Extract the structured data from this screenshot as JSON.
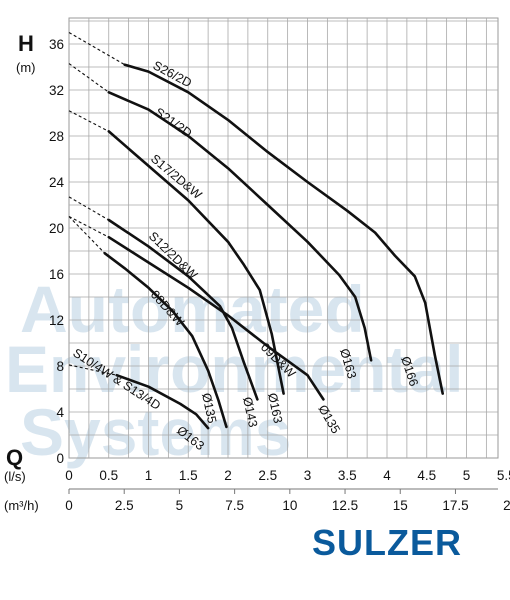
{
  "logo_text": "SULZER",
  "watermark_lines": [
    "Automated",
    "Environmental",
    "Systems"
  ],
  "chart_data": {
    "type": "line",
    "title": "",
    "y_axis": {
      "name": "H",
      "unit": "(m)",
      "range": [
        0,
        38
      ],
      "ticks": [
        0,
        4,
        8,
        12,
        16,
        20,
        24,
        28,
        32,
        36
      ]
    },
    "x_axis": {
      "name": "Q",
      "unit": "(l/s)",
      "range": [
        0,
        5.8
      ],
      "ticks": [
        "0",
        "0.5",
        "1",
        "1.5",
        "2",
        "2.5",
        "3",
        "3.5",
        "4",
        "4.5",
        "5",
        "5.5"
      ],
      "tick_values": [
        0,
        0.5,
        1,
        1.5,
        2,
        2.5,
        3,
        3.5,
        4,
        4.5,
        5,
        5.5
      ]
    },
    "x_axis_secondary": {
      "unit": "(m³/h)",
      "ticks": [
        "0",
        "2.5",
        "5",
        "7.5",
        "10",
        "12.5",
        "15",
        "17.5",
        "20"
      ],
      "tick_values": [
        0,
        2.5,
        5,
        7.5,
        10,
        12.5,
        15,
        17.5,
        20
      ]
    },
    "grid": true,
    "line_color": "#111111",
    "series": [
      {
        "name": "S26/2D",
        "diameter": "Ø166",
        "dashed": [
          [
            0,
            37.0
          ],
          [
            0.7,
            34.2
          ]
        ],
        "values": [
          [
            0.7,
            34.2
          ],
          [
            1.0,
            33.6
          ],
          [
            1.5,
            31.8
          ],
          [
            2.0,
            29.4
          ],
          [
            2.5,
            26.6
          ],
          [
            3.0,
            24.0
          ],
          [
            3.5,
            21.5
          ],
          [
            3.85,
            19.6
          ],
          [
            4.1,
            17.6
          ],
          [
            4.35,
            15.8
          ],
          [
            4.48,
            13.5
          ],
          [
            4.6,
            9.0
          ],
          [
            4.7,
            5.6
          ]
        ]
      },
      {
        "name": "S21/2D",
        "diameter": "Ø163",
        "dashed": [
          [
            0,
            34.3
          ],
          [
            0.5,
            31.8
          ]
        ],
        "values": [
          [
            0.5,
            31.8
          ],
          [
            1.0,
            30.3
          ],
          [
            1.5,
            28.0
          ],
          [
            2.0,
            25.2
          ],
          [
            2.5,
            22.0
          ],
          [
            3.0,
            18.8
          ],
          [
            3.4,
            15.9
          ],
          [
            3.6,
            14.0
          ],
          [
            3.72,
            11.3
          ],
          [
            3.8,
            8.5
          ]
        ]
      },
      {
        "name": "S17/2D&W",
        "diameter": "Ø163",
        "dashed": [
          [
            0,
            30.2
          ],
          [
            0.5,
            28.4
          ]
        ],
        "values": [
          [
            0.5,
            28.4
          ],
          [
            1.0,
            25.4
          ],
          [
            1.5,
            22.4
          ],
          [
            2.0,
            18.8
          ],
          [
            2.2,
            16.8
          ],
          [
            2.4,
            14.6
          ],
          [
            2.55,
            10.8
          ],
          [
            2.7,
            5.6
          ]
        ]
      },
      {
        "name": "S12/2D&W",
        "diameter": "Ø143",
        "dashed": [
          [
            0,
            22.7
          ],
          [
            0.5,
            20.7
          ]
        ],
        "values": [
          [
            0.5,
            20.7
          ],
          [
            1.0,
            18.4
          ],
          [
            1.5,
            15.8
          ],
          [
            1.9,
            13.2
          ],
          [
            2.05,
            11.3
          ],
          [
            2.2,
            8.3
          ],
          [
            2.37,
            5.1
          ]
        ]
      },
      {
        "name": "08D&W",
        "diameter": "Ø135",
        "dashed": [
          [
            0,
            21.0
          ],
          [
            0.45,
            17.8
          ]
        ],
        "values": [
          [
            0.45,
            17.8
          ],
          [
            0.7,
            16.5
          ],
          [
            1.0,
            14.8
          ],
          [
            1.3,
            12.8
          ],
          [
            1.55,
            10.6
          ],
          [
            1.75,
            7.6
          ],
          [
            1.88,
            5.0
          ],
          [
            1.98,
            2.7
          ]
        ]
      },
      {
        "name": "09D&W",
        "diameter": "Ø135",
        "dashed": [
          [
            0,
            21.0
          ],
          [
            0.5,
            19.2
          ]
        ],
        "values": [
          [
            0.5,
            19.2
          ],
          [
            1.0,
            17.0
          ],
          [
            1.5,
            14.8
          ],
          [
            2.0,
            12.4
          ],
          [
            2.5,
            9.7
          ],
          [
            3.0,
            7.2
          ],
          [
            3.2,
            5.1
          ]
        ]
      },
      {
        "name": "S10/4W & S13/4D",
        "diameter": "Ø163",
        "dashed": [
          [
            0,
            8.1
          ],
          [
            0.6,
            7.2
          ]
        ],
        "values": [
          [
            0.6,
            7.2
          ],
          [
            1.0,
            6.2
          ],
          [
            1.4,
            4.7
          ],
          [
            1.6,
            3.8
          ],
          [
            1.75,
            2.6
          ]
        ]
      }
    ]
  }
}
